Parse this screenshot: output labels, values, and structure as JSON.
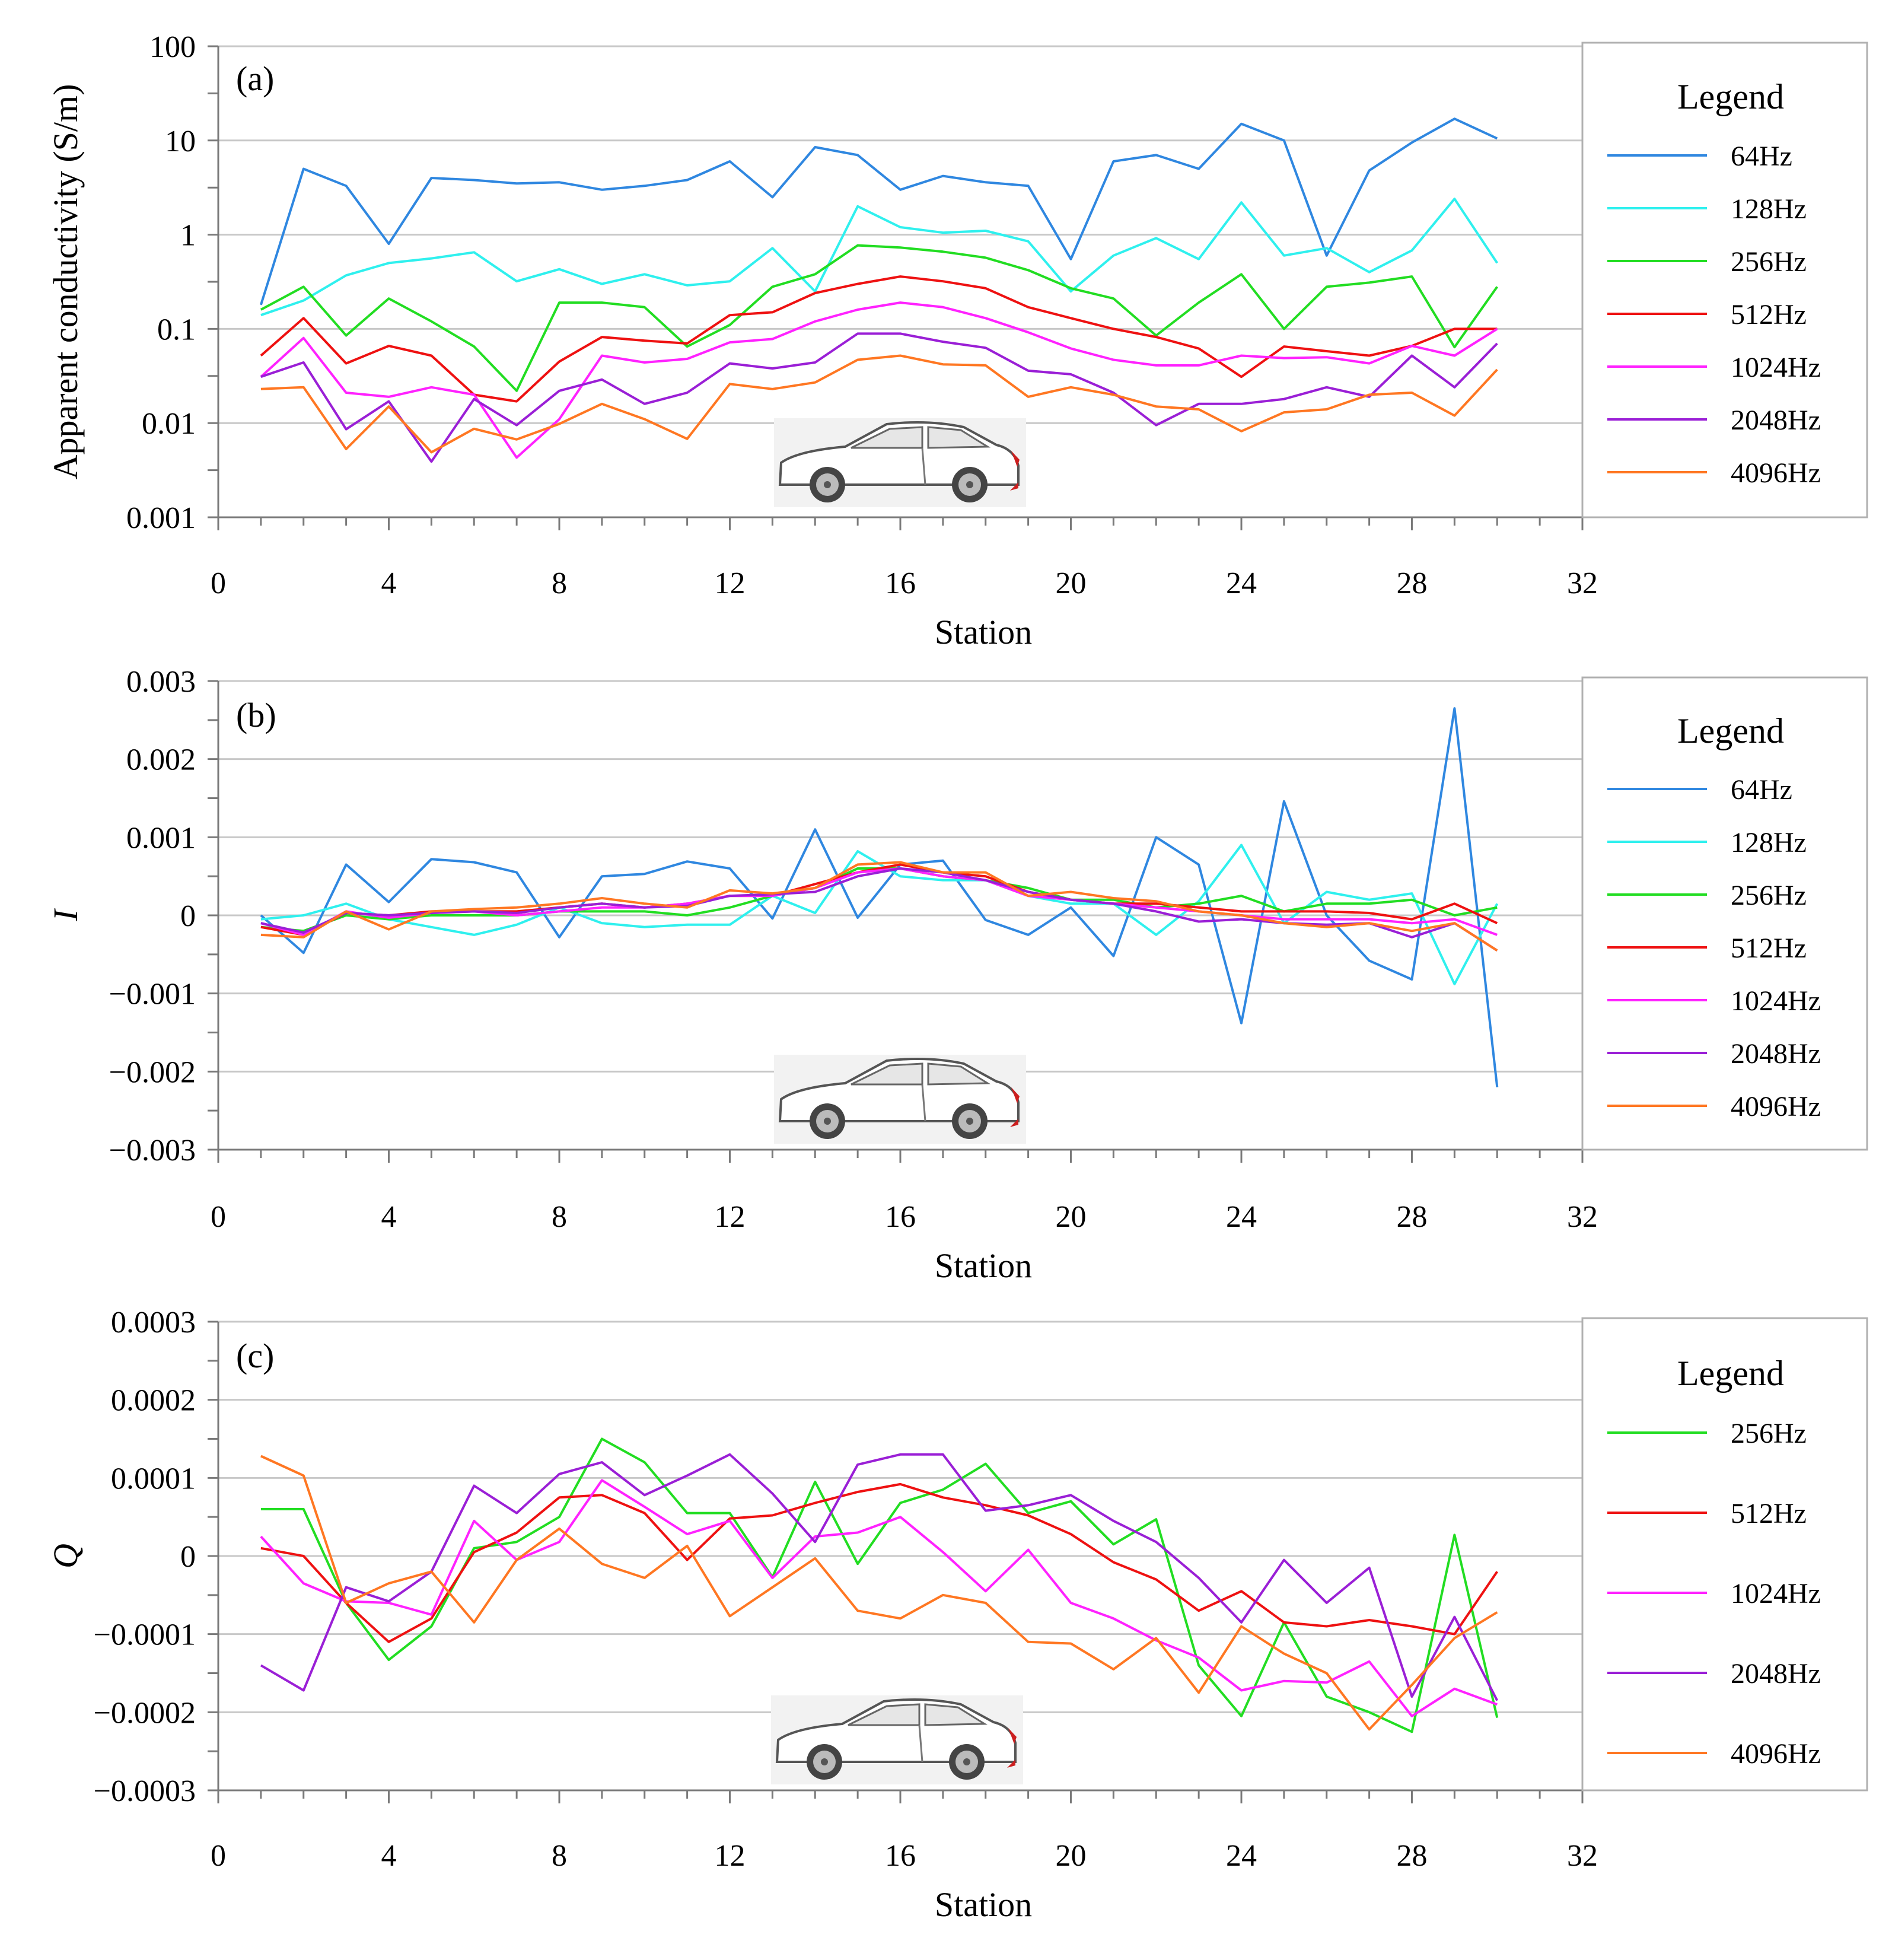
{
  "chart_data": [
    {
      "type": "line",
      "panel_label": "(a)",
      "title": "",
      "xlabel": "Station",
      "ylabel": "Apparent conductivity (S/m)",
      "yscale": "log",
      "xlim": [
        0,
        32
      ],
      "ylim": [
        0.001,
        100
      ],
      "x_ticks": [
        "0",
        "4",
        "8",
        "12",
        "16",
        "20",
        "24",
        "28",
        "32"
      ],
      "y_ticks": [
        "0.001",
        "0.01",
        "0.1",
        "1",
        "10",
        "100"
      ],
      "grid": true,
      "legend_title": "Legend",
      "x": [
        1,
        2,
        3,
        4,
        5,
        6,
        7,
        8,
        9,
        10,
        11,
        12,
        13,
        14,
        15,
        16,
        17,
        18,
        19,
        20,
        21,
        22,
        23,
        24,
        25,
        26,
        27,
        28,
        29,
        30
      ],
      "series": [
        {
          "name": "64Hz",
          "color": "#2f87e0",
          "values": [
            0.18,
            5.0,
            3.3,
            0.8,
            4.0,
            3.8,
            3.5,
            3.6,
            3.0,
            3.3,
            3.8,
            6.0,
            2.5,
            8.5,
            7.0,
            3.0,
            4.2,
            3.6,
            3.3,
            0.55,
            6.0,
            7.0,
            5.0,
            15,
            10,
            0.6,
            4.8,
            9.5,
            17,
            10.5
          ]
        },
        {
          "name": "128Hz",
          "color": "#2ff0ee",
          "values": [
            0.14,
            0.2,
            0.37,
            0.5,
            0.56,
            0.65,
            0.32,
            0.43,
            0.3,
            0.38,
            0.29,
            0.32,
            0.72,
            0.25,
            2.0,
            1.2,
            1.05,
            1.1,
            0.85,
            0.25,
            0.6,
            0.92,
            0.55,
            2.2,
            0.6,
            0.72,
            0.4,
            0.68,
            2.4,
            0.5
          ]
        },
        {
          "name": "256Hz",
          "color": "#22dd22",
          "values": [
            0.16,
            0.28,
            0.085,
            0.21,
            0.12,
            0.065,
            0.022,
            0.19,
            0.19,
            0.17,
            0.065,
            0.11,
            0.28,
            0.38,
            0.77,
            0.73,
            0.66,
            0.57,
            0.42,
            0.27,
            0.21,
            0.085,
            0.19,
            0.38,
            0.1,
            0.28,
            0.31,
            0.36,
            0.064,
            0.28
          ]
        },
        {
          "name": "512Hz",
          "color": "#ee1111",
          "values": [
            0.052,
            0.13,
            0.043,
            0.066,
            0.052,
            0.02,
            0.017,
            0.045,
            0.082,
            0.075,
            0.07,
            0.14,
            0.15,
            0.24,
            0.3,
            0.36,
            0.32,
            0.27,
            0.17,
            0.13,
            0.1,
            0.082,
            0.062,
            0.031,
            0.065,
            0.058,
            0.052,
            0.066,
            0.1,
            0.1
          ]
        },
        {
          "name": "1024Hz",
          "color": "#ff22ff",
          "values": [
            0.031,
            0.08,
            0.021,
            0.019,
            0.024,
            0.02,
            0.0043,
            0.011,
            0.052,
            0.044,
            0.048,
            0.072,
            0.078,
            0.12,
            0.16,
            0.19,
            0.17,
            0.13,
            0.092,
            0.062,
            0.047,
            0.041,
            0.041,
            0.052,
            0.049,
            0.05,
            0.043,
            0.066,
            0.052,
            0.1
          ]
        },
        {
          "name": "2048Hz",
          "color": "#9a1fd6",
          "values": [
            0.031,
            0.044,
            0.0086,
            0.017,
            0.0039,
            0.018,
            0.0095,
            0.022,
            0.029,
            0.016,
            0.021,
            0.043,
            0.038,
            0.044,
            0.089,
            0.089,
            0.073,
            0.063,
            0.036,
            0.033,
            0.021,
            0.0095,
            0.016,
            0.016,
            0.018,
            0.024,
            0.019,
            0.052,
            0.024,
            0.07
          ]
        },
        {
          "name": "4096Hz",
          "color": "#ff7722",
          "values": [
            0.023,
            0.024,
            0.0053,
            0.015,
            0.0049,
            0.0087,
            0.0067,
            0.0098,
            0.016,
            0.011,
            0.0068,
            0.026,
            0.023,
            0.027,
            0.047,
            0.052,
            0.042,
            0.041,
            0.019,
            0.024,
            0.02,
            0.015,
            0.014,
            0.0082,
            0.013,
            0.014,
            0.02,
            0.021,
            0.012,
            0.037
          ]
        }
      ]
    },
    {
      "type": "line",
      "panel_label": "(b)",
      "title": "",
      "xlabel": "Station",
      "ylabel": "I",
      "yscale": "linear",
      "xlim": [
        0,
        32
      ],
      "ylim": [
        -0.003,
        0.003
      ],
      "x_ticks": [
        "0",
        "4",
        "8",
        "12",
        "16",
        "20",
        "24",
        "28",
        "32"
      ],
      "y_ticks": [
        "−0.003",
        "−0.002",
        "−0.001",
        "0",
        "0.001",
        "0.002",
        "0.003"
      ],
      "grid": true,
      "legend_title": "Legend",
      "x": [
        1,
        2,
        3,
        4,
        5,
        6,
        7,
        8,
        9,
        10,
        11,
        12,
        13,
        14,
        15,
        16,
        17,
        18,
        19,
        20,
        21,
        22,
        23,
        24,
        25,
        26,
        27,
        28,
        29,
        30
      ],
      "series": [
        {
          "name": "64Hz",
          "color": "#2f87e0",
          "values": [
            0.0,
            -0.00048,
            0.00065,
            0.00017,
            0.00072,
            0.00068,
            0.00055,
            -0.00028,
            0.0005,
            0.00053,
            0.00069,
            0.0006,
            -4e-05,
            0.0011,
            -3e-05,
            0.00065,
            0.0007,
            -6e-05,
            -0.00025,
            0.0001,
            -0.00052,
            0.001,
            0.00065,
            -0.00138,
            0.00146,
            0.0,
            -0.00058,
            -0.00082,
            0.00265,
            -0.0022
          ]
        },
        {
          "name": "128Hz",
          "color": "#2ff0ee",
          "values": [
            -5e-05,
            0.0,
            0.00015,
            -5e-05,
            -0.00015,
            -0.00025,
            -0.00012,
            0.0001,
            -0.0001,
            -0.00015,
            -0.00012,
            -0.00012,
            0.00025,
            3e-05,
            0.00082,
            0.0005,
            0.00045,
            0.00045,
            0.00025,
            0.00015,
            0.00015,
            -0.00025,
            0.00018,
            0.0009,
            -0.0001,
            0.0003,
            0.0002,
            0.00028,
            -0.00088,
            0.00015
          ]
        },
        {
          "name": "256Hz",
          "color": "#22dd22",
          "values": [
            -0.00015,
            -0.0002,
            0.0,
            -5e-05,
            0.0,
            0.0,
            0.0,
            5e-05,
            5e-05,
            5e-05,
            0.0,
            0.0001,
            0.00025,
            0.00035,
            0.0006,
            0.0006,
            0.0005,
            0.00045,
            0.00035,
            0.0002,
            0.0002,
            0.0001,
            0.00015,
            0.00025,
            5e-05,
            0.00015,
            0.00015,
            0.0002,
            0.0,
            0.0001
          ]
        },
        {
          "name": "512Hz",
          "color": "#ee1111",
          "values": [
            -0.00015,
            -0.00025,
            3e-05,
            0.0,
            5e-05,
            5e-05,
            5e-05,
            0.0001,
            0.00015,
            0.0001,
            0.00015,
            0.00025,
            0.00025,
            0.0004,
            0.00055,
            0.00065,
            0.00055,
            0.0005,
            0.0003,
            0.0002,
            0.00015,
            0.00015,
            0.0001,
            5e-05,
            5e-05,
            5e-05,
            3e-05,
            -5e-05,
            0.00015,
            -0.0001
          ]
        },
        {
          "name": "1024Hz",
          "color": "#ff22ff",
          "values": [
            -0.0001,
            -0.00025,
            5e-05,
            -3e-05,
            3e-05,
            5e-05,
            0.0,
            5e-05,
            0.0001,
            0.0001,
            0.00015,
            0.00025,
            0.00025,
            0.00035,
            0.00055,
            0.0006,
            0.0005,
            0.00045,
            0.00025,
            0.0002,
            0.00015,
            0.0001,
            5e-05,
            0.0,
            -5e-05,
            -5e-05,
            -5e-05,
            -0.0001,
            -5e-05,
            -0.00025
          ]
        },
        {
          "name": "2048Hz",
          "color": "#9a1fd6",
          "values": [
            -0.0001,
            -0.00022,
            3e-05,
            0.0,
            3e-05,
            5e-05,
            3e-05,
            0.0001,
            0.00015,
            0.0001,
            0.00012,
            0.00025,
            0.00027,
            0.0003,
            0.0005,
            0.0006,
            0.00055,
            0.00045,
            0.0003,
            0.0002,
            0.00015,
            5e-05,
            -8e-05,
            -5e-05,
            -0.0001,
            -0.00012,
            -0.0001,
            -0.00028,
            -0.0001,
            -0.00045
          ]
        },
        {
          "name": "4096Hz",
          "color": "#ff7722",
          "values": [
            -0.00025,
            -0.00028,
            5e-05,
            -0.00018,
            5e-05,
            8e-05,
            0.0001,
            0.00015,
            0.00022,
            0.00015,
            0.0001,
            0.00032,
            0.00028,
            0.00035,
            0.00065,
            0.00068,
            0.00055,
            0.00055,
            0.00025,
            0.0003,
            0.00022,
            0.00018,
            5e-05,
            0.0,
            -0.0001,
            -0.00015,
            -0.0001,
            -0.0002,
            -0.0001,
            -0.00045
          ]
        }
      ]
    },
    {
      "type": "line",
      "panel_label": "(c)",
      "title": "",
      "xlabel": "Station",
      "ylabel": "Q",
      "yscale": "linear",
      "xlim": [
        0,
        32
      ],
      "ylim": [
        -0.0003,
        0.0003
      ],
      "x_ticks": [
        "0",
        "4",
        "8",
        "12",
        "16",
        "20",
        "24",
        "28",
        "32"
      ],
      "y_ticks": [
        "−0.0003",
        "−0.0002",
        "−0.0001",
        "0",
        "0.0001",
        "0.0002",
        "0.0003"
      ],
      "grid": true,
      "legend_title": "Legend",
      "x": [
        1,
        2,
        3,
        4,
        5,
        6,
        7,
        8,
        9,
        10,
        11,
        12,
        13,
        14,
        15,
        16,
        17,
        18,
        19,
        20,
        21,
        22,
        23,
        24,
        25,
        26,
        27,
        28,
        29,
        30
      ],
      "series": [
        {
          "name": "256Hz",
          "color": "#22dd22",
          "values": [
            6e-05,
            6e-05,
            -6e-05,
            -0.000133,
            -9e-05,
            1e-05,
            1.8e-05,
            5e-05,
            0.00015,
            0.00012,
            5.5e-05,
            5.5e-05,
            -2.7e-05,
            9.5e-05,
            -1e-05,
            6.8e-05,
            8.5e-05,
            0.000118,
            5.5e-05,
            7e-05,
            1.5e-05,
            4.7e-05,
            -0.00014,
            -0.000205,
            -8.5e-05,
            -0.00018,
            -0.0002,
            -0.000225,
            2.7e-05,
            -0.000207
          ]
        },
        {
          "name": "512Hz",
          "color": "#ee1111",
          "values": [
            1e-05,
            0.0,
            -6e-05,
            -0.00011,
            -8e-05,
            5e-06,
            3e-05,
            7.5e-05,
            7.8e-05,
            5.5e-05,
            -5e-06,
            4.8e-05,
            5.2e-05,
            6.8e-05,
            8.2e-05,
            9.2e-05,
            7.5e-05,
            6.5e-05,
            5.2e-05,
            2.8e-05,
            -8e-06,
            -3e-05,
            -7e-05,
            -4.5e-05,
            -8.5e-05,
            -9e-05,
            -8.2e-05,
            -9e-05,
            -0.0001,
            -2e-05
          ]
        },
        {
          "name": "1024Hz",
          "color": "#ff22ff",
          "values": [
            2.5e-05,
            -3.5e-05,
            -5.8e-05,
            -6e-05,
            -7.5e-05,
            4.5e-05,
            -5e-06,
            1.8e-05,
            9.7e-05,
            6.3e-05,
            2.8e-05,
            4.5e-05,
            -2.8e-05,
            2.5e-05,
            3e-05,
            5e-05,
            5e-06,
            -4.5e-05,
            8e-06,
            -6e-05,
            -8e-05,
            -0.000108,
            -0.00013,
            -0.000172,
            -0.00016,
            -0.000162,
            -0.000135,
            -0.000205,
            -0.00017,
            -0.00019
          ]
        },
        {
          "name": "2048Hz",
          "color": "#9a1fd6",
          "values": [
            -0.00014,
            -0.000172,
            -4e-05,
            -5.8e-05,
            -2e-05,
            9e-05,
            5.5e-05,
            0.000105,
            0.00012,
            7.8e-05,
            0.000103,
            0.00013,
            8e-05,
            1.8e-05,
            0.000117,
            0.00013,
            0.00013,
            5.8e-05,
            6.5e-05,
            7.8e-05,
            4.5e-05,
            1.8e-05,
            -2.8e-05,
            -8.5e-05,
            -5e-06,
            -6e-05,
            -1.5e-05,
            -0.00018,
            -7.8e-05,
            -0.000185
          ]
        },
        {
          "name": "4096Hz",
          "color": "#ff7722",
          "values": [
            0.000128,
            0.000103,
            -6e-05,
            -3.5e-05,
            -2e-05,
            -8.5e-05,
            -5e-06,
            3.5e-05,
            -1e-05,
            -2.8e-05,
            1.3e-05,
            -7.7e-05,
            -4e-05,
            -3e-06,
            -7e-05,
            -8e-05,
            -5e-05,
            -6e-05,
            -0.00011,
            -0.000112,
            -0.000145,
            -0.000105,
            -0.000175,
            -9e-05,
            -0.000125,
            -0.00015,
            -0.000222,
            -0.000165,
            -0.000105,
            -7.2e-05
          ]
        }
      ]
    }
  ]
}
